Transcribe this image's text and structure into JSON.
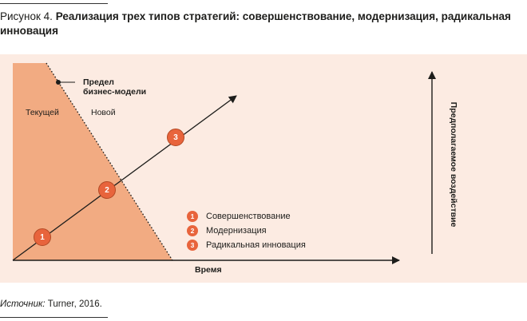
{
  "figure": {
    "label": "Рисунок 4.",
    "title": "Реализация трех типов стратегий: совершенствование, модернизация, радикальная инновация"
  },
  "diagram": {
    "region_current": "Текущей",
    "region_new": "Новой",
    "limit_label_line1": "Предел",
    "limit_label_line2": "бизнес-модели",
    "x_axis_label": "Время",
    "y_axis_label": "Предполагаемое воздействие",
    "markers": [
      "1",
      "2",
      "3"
    ],
    "legend": [
      {
        "num": "1",
        "label": "Совершенствование"
      },
      {
        "num": "2",
        "label": "Модернизация"
      },
      {
        "num": "3",
        "label": "Радикальная инновация"
      }
    ],
    "colors": {
      "accent": "#e8643c",
      "current_area": "#f2ab82",
      "panel_bg": "#fcebe2"
    }
  },
  "source": {
    "label": "Источник:",
    "text": " Turner, 2016."
  }
}
